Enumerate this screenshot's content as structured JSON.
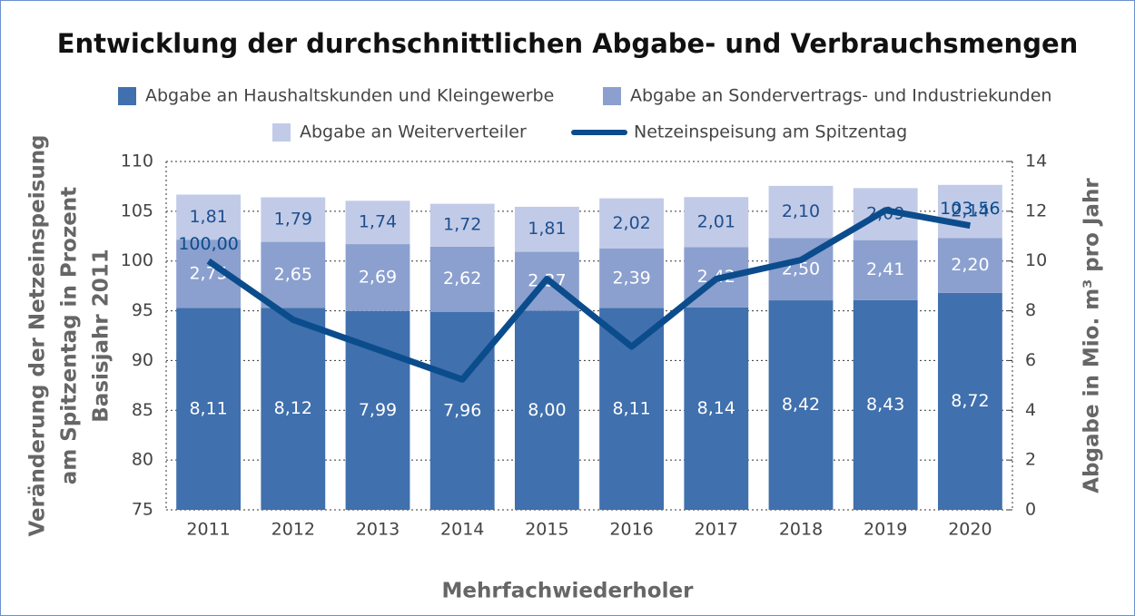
{
  "chart_data": {
    "type": "bar",
    "stacked": true,
    "title": "Entwicklung der durchschnittlichen Abgabe- und Verbrauchsmengen",
    "ylabel": [
      "Veränderung der Netzeinspeisung",
      "am Spitzentag in Prozent",
      "Basisjahr 2011"
    ],
    "y2label": "Abgabe in Mio. m³ pro Jahr",
    "xlabel": "Mehrfachwiederholer",
    "categories": [
      "2011",
      "2012",
      "2013",
      "2014",
      "2015",
      "2016",
      "2017",
      "2018",
      "2019",
      "2020"
    ],
    "series": [
      {
        "name": "Abgabe an Haushaltskunden und Kleingewerbe",
        "type": "bar",
        "axis": "y2",
        "color": "#4070ad",
        "values": [
          8.11,
          8.12,
          7.99,
          7.96,
          8.0,
          8.11,
          8.14,
          8.42,
          8.43,
          8.72
        ],
        "value_labels": [
          "8,11",
          "8,12",
          "7,99",
          "7,96",
          "8,00",
          "8,11",
          "8,14",
          "8,42",
          "8,43",
          "8,72"
        ]
      },
      {
        "name": "Abgabe an Sondervertrags- und Industriekunden",
        "type": "bar",
        "axis": "y2",
        "color": "#8ba0cf",
        "values": [
          2.75,
          2.65,
          2.69,
          2.62,
          2.37,
          2.39,
          2.42,
          2.5,
          2.41,
          2.2
        ],
        "value_labels": [
          "2,75",
          "2,65",
          "2,69",
          "2,62",
          "2,37",
          "2,39",
          "2,42",
          "2,50",
          "2,41",
          "2,20"
        ]
      },
      {
        "name": "Abgabe an Weiterverteiler",
        "type": "bar",
        "axis": "y2",
        "color": "#c1cbe7",
        "values": [
          1.81,
          1.79,
          1.74,
          1.72,
          1.81,
          2.02,
          2.01,
          2.1,
          2.09,
          2.14
        ],
        "value_labels": [
          "1,81",
          "1,79",
          "1,74",
          "1,72",
          "1,81",
          "2,02",
          "2,01",
          "2,10",
          "2,09",
          "2,14"
        ]
      },
      {
        "name": "Netzeinspeisung am Spitzentag",
        "type": "line",
        "axis": "y",
        "color": "#0b4c8c",
        "values": [
          100.0,
          94.1,
          91.1,
          88.1,
          98.2,
          91.4,
          98.2,
          100.1,
          105.1,
          103.56
        ],
        "value_labels": [
          "100,00",
          null,
          null,
          null,
          null,
          null,
          null,
          null,
          null,
          "103,56"
        ]
      }
    ],
    "ylim": [
      75,
      110
    ],
    "yticks": [
      75,
      80,
      85,
      90,
      95,
      100,
      105,
      110
    ],
    "y2lim": [
      0,
      14
    ],
    "y2ticks": [
      0,
      2,
      4,
      6,
      8,
      10,
      12,
      14
    ],
    "grid": true
  }
}
